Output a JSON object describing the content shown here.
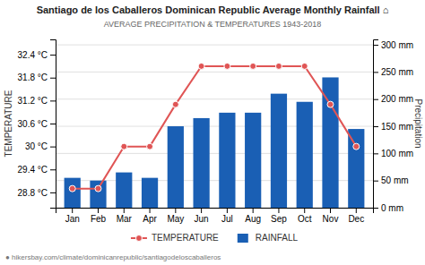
{
  "chart_data": {
    "type": "bar",
    "title": "Santiago de los Caballeros Dominican Republic Average Monthly Rainfall ⌂",
    "subtitle": "AVERAGE PRECIPITATION & TEMPERATURES 1943-2018",
    "categories": [
      "Jan",
      "Feb",
      "Mar",
      "Apr",
      "May",
      "Jun",
      "Jul",
      "Aug",
      "Sep",
      "Oct",
      "Nov",
      "Dec"
    ],
    "series": [
      {
        "name": "TEMPERATURE",
        "type": "line",
        "marker": "circle",
        "color": "#e05555",
        "values": [
          28.9,
          28.9,
          30.0,
          30.0,
          31.1,
          32.1,
          32.1,
          32.1,
          32.1,
          32.1,
          31.1,
          30.0
        ]
      },
      {
        "name": "RAINFALL",
        "type": "bar",
        "axis": "y2",
        "color": "#1a5fb4",
        "values": [
          55,
          50,
          65,
          55,
          150,
          165,
          175,
          175,
          210,
          195,
          240,
          145
        ]
      }
    ],
    "ylabel": "TEMPERATURE",
    "y2label": "Precipitation",
    "ylim": [
      28.4,
      32.8
    ],
    "yticks": [
      {
        "value": 28.8,
        "label": "28.8 °C"
      },
      {
        "value": 29.4,
        "label": "29.4 °C"
      },
      {
        "value": 30.0,
        "label": "30 °C"
      },
      {
        "value": 30.6,
        "label": "30.6 °C"
      },
      {
        "value": 31.2,
        "label": "31.2 °C"
      },
      {
        "value": 31.8,
        "label": "31.8 °C"
      },
      {
        "value": 32.4,
        "label": "32.4 °C"
      }
    ],
    "y2lim": [
      0,
      310
    ],
    "y2ticks": [
      {
        "value": 0,
        "label": "0 mm"
      },
      {
        "value": 50,
        "label": "50 mm"
      },
      {
        "value": 100,
        "label": "100 mm"
      },
      {
        "value": 150,
        "label": "150 mm"
      },
      {
        "value": 200,
        "label": "200 mm"
      },
      {
        "value": 250,
        "label": "250 mm"
      },
      {
        "value": 300,
        "label": "300 mm"
      }
    ],
    "grid": true,
    "legend": "bottom",
    "annotations": [
      "● hikersbay.com/climate/dominicanrepublic/santiagodeloscaballeros"
    ]
  }
}
